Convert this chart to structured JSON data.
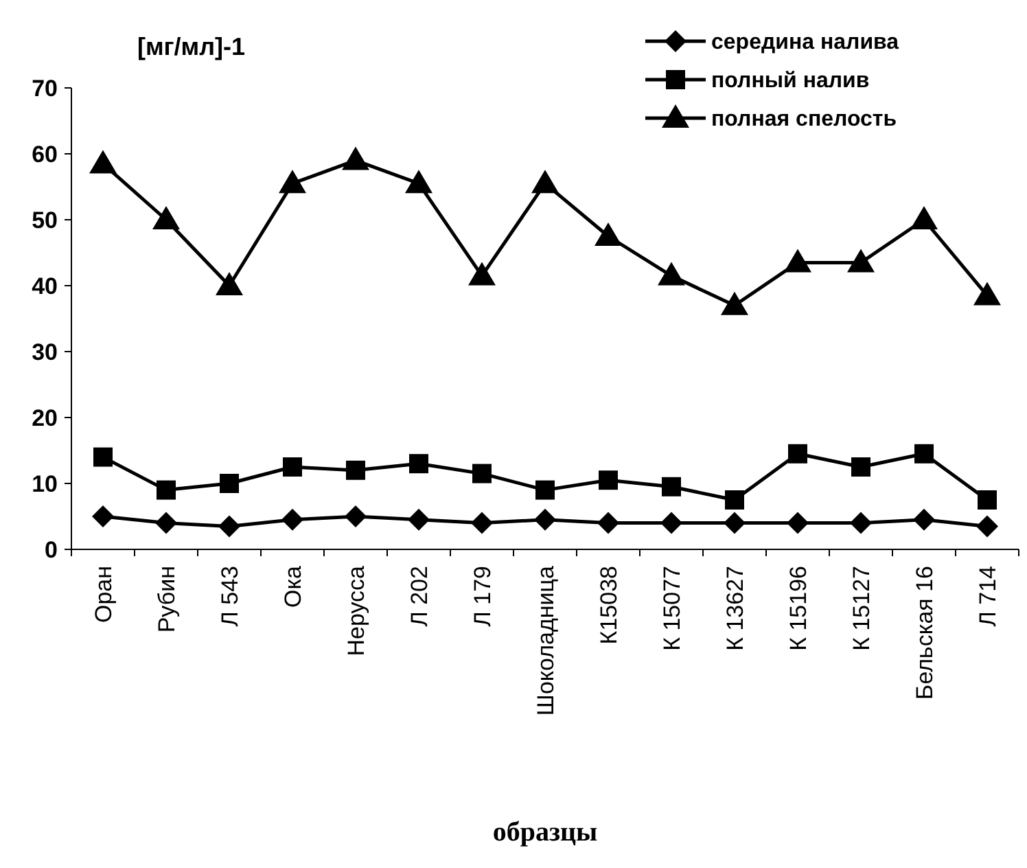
{
  "chart_data": {
    "type": "line",
    "ylabel": "[мг/мл]-1",
    "xlabel": "образцы",
    "categories": [
      "Оран",
      "Рубин",
      "Л 543",
      "Ока",
      "Нерусса",
      "Л 202",
      "Л 179",
      "Шоколадница",
      "К15038",
      "К 15077",
      "К 13627",
      "К 15196",
      "К 15127",
      "Бельская 16",
      "Л 714"
    ],
    "series": [
      {
        "name": "середина налива",
        "color": "#000000",
        "marker": "diamond",
        "values": [
          5,
          4,
          3.5,
          4.5,
          5,
          4.5,
          4,
          4.5,
          4,
          4,
          4,
          4,
          4,
          4.5,
          3.5
        ]
      },
      {
        "name": "полный налив",
        "color": "#000000",
        "marker": "square",
        "values": [
          14,
          9,
          10,
          12.5,
          12,
          13,
          11.5,
          9,
          10.5,
          9.5,
          7.5,
          14.5,
          12.5,
          14.5,
          7.5
        ]
      },
      {
        "name": "полная спелость",
        "color": "#000000",
        "marker": "triangle",
        "values": [
          58.5,
          50,
          40,
          55.5,
          59,
          55.5,
          41.5,
          55.5,
          47.5,
          41.5,
          37,
          43.5,
          43.5,
          50,
          38.5
        ]
      }
    ],
    "ylim": [
      0,
      70
    ],
    "yticks": [
      0,
      10,
      20,
      30,
      40,
      50,
      60,
      70
    ],
    "grid": false,
    "legend": "top right",
    "line_style": "solid"
  }
}
